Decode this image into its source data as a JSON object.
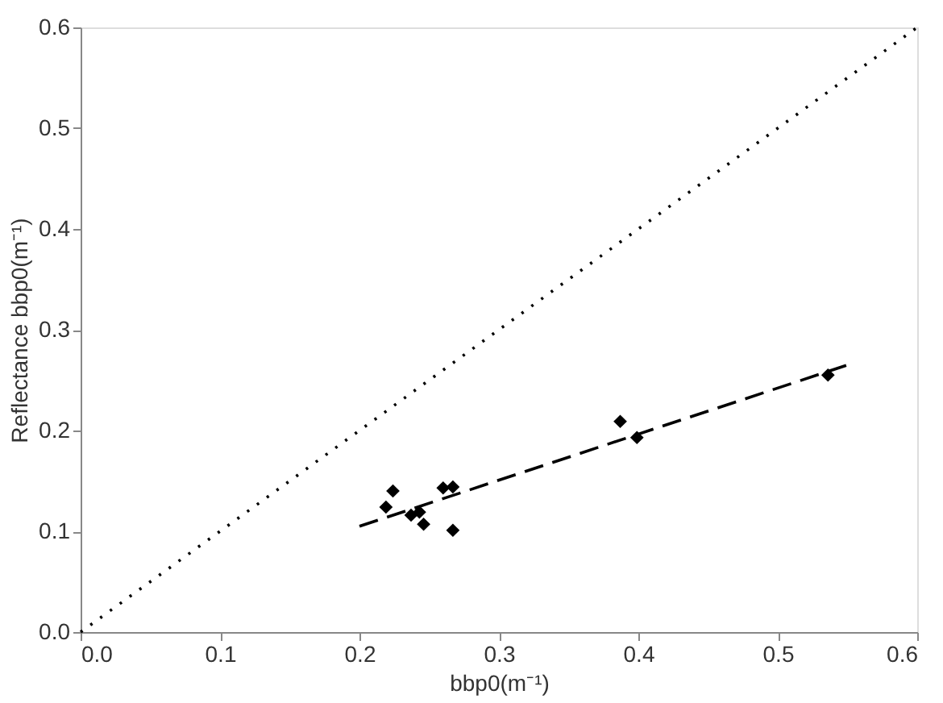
{
  "chart_data": {
    "type": "scatter",
    "xlabel": "bbp0(m⁻¹)",
    "ylabel": "Reflectance bbp0(m⁻¹)",
    "xlim": [
      0,
      0.6
    ],
    "ylim": [
      0,
      0.6
    ],
    "xticks": [
      {
        "value": 0,
        "label": "0.0"
      },
      0.1,
      0.2,
      0.3,
      0.4,
      0.5,
      0.6
    ],
    "yticks": [
      {
        "value": 0,
        "label": "0.0"
      },
      0.1,
      0.2,
      0.3,
      0.4,
      0.5,
      0.6
    ],
    "grid": false,
    "series": [
      {
        "marker": "diamond",
        "color": "#000000",
        "x": [
          0.224,
          0.219,
          0.237,
          0.243,
          0.246,
          0.26,
          0.267,
          0.267,
          0.387,
          0.399,
          0.536
        ],
        "values": [
          0.14,
          0.124,
          0.116,
          0.119,
          0.107,
          0.143,
          0.144,
          0.101,
          0.209,
          0.193,
          0.255
        ]
      },
      {
        "type": "line",
        "line_style": "dashed",
        "color": "#000000",
        "x": [
          0.2,
          0.55
        ],
        "values": [
          0.105,
          0.265
        ]
      },
      {
        "type": "line",
        "line_style": "dotted",
        "color": "#000000",
        "x": [
          0,
          0.6
        ],
        "values": [
          0,
          0.6
        ]
      }
    ]
  }
}
